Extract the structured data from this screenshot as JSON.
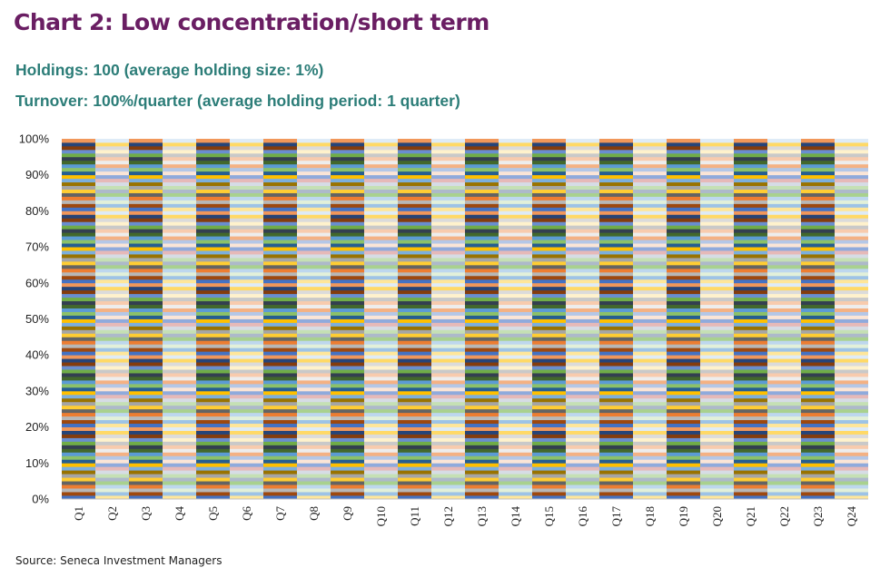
{
  "chart_data": {
    "type": "bar",
    "stacked": true,
    "percent_stacked": true,
    "title": "Chart 2: Low concentration/short term",
    "subtitle_lines": [
      "Holdings: 100 (average holding size: 1%)",
      "Turnover: 100%/quarter (average holding period: 1 quarter)"
    ],
    "source": "Source: Seneca Investment Managers",
    "categories": [
      "Q1",
      "Q2",
      "Q3",
      "Q4",
      "Q5",
      "Q6",
      "Q7",
      "Q8",
      "Q9",
      "Q10",
      "Q11",
      "Q12",
      "Q13",
      "Q14",
      "Q15",
      "Q16",
      "Q17",
      "Q18",
      "Q19",
      "Q20",
      "Q21",
      "Q22",
      "Q23",
      "Q24"
    ],
    "series_count": 100,
    "holding_value_pct": 1,
    "y_ticks": [
      "0%",
      "10%",
      "20%",
      "30%",
      "40%",
      "50%",
      "60%",
      "70%",
      "80%",
      "90%",
      "100%"
    ],
    "ylim": [
      0,
      100
    ],
    "grid": false,
    "legend": "none",
    "palettes": {
      "odd_quarters": [
        "#4472c4",
        "#ed7d31",
        "#a5a5a5",
        "#ffc000",
        "#5b9bd5",
        "#70ad47",
        "#264478",
        "#9e480e",
        "#636363",
        "#997300",
        "#255e91",
        "#43682b",
        "#698ed0",
        "#f1975a",
        "#b7b7b7",
        "#ffcd33",
        "#7cafdd",
        "#8cc168",
        "#333f50",
        "#843c0c"
      ],
      "even_quarters": [
        "#b4c7e7",
        "#f8cbad",
        "#dbdbdb",
        "#ffe699",
        "#bdd7ee",
        "#c5e0b4",
        "#8faadc",
        "#f4b183",
        "#c9c9c9",
        "#ffd966",
        "#9dc3e6",
        "#a9d18e",
        "#d6dce5",
        "#fbe5d6",
        "#ededed",
        "#fff2cc",
        "#deebf7",
        "#e2f0d9",
        "#adb9ca",
        "#e6b9b8"
      ]
    }
  }
}
